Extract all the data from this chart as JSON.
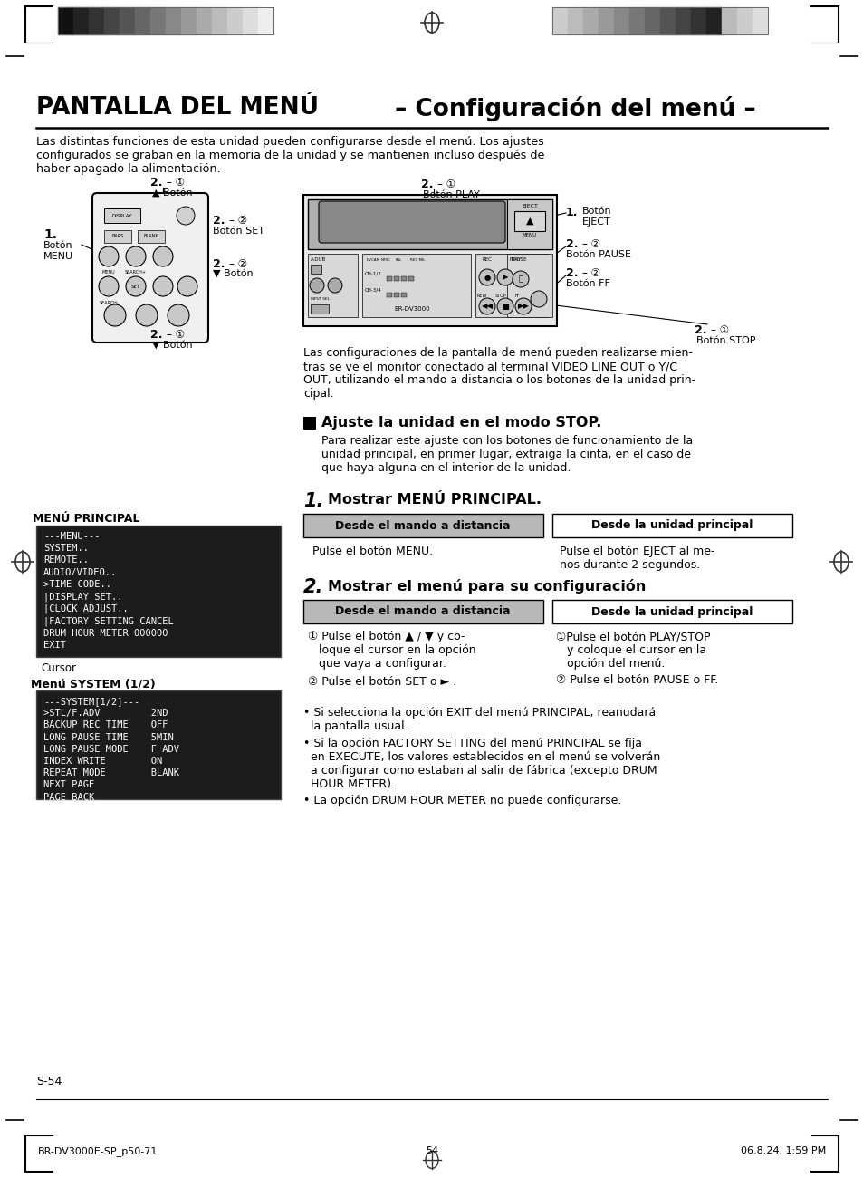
{
  "title_bold": "PANTALLA DEL MENÚ",
  "title_normal": " – Configuración del menú –",
  "intro_text": "Las distintas funciones de esta unidad pueden configurarse desde el menú. Los ajustes\nconfigurados se graban en la memoria de la unidad y se mantienen incluso después de\nhaber apagado la alimentación.",
  "mid_text": "Las configuraciones de la pantalla de menú pueden realizarse mien-\ntras se ve el monitor conectado al terminal VIDEO LINE OUT o Y/C\nOUT, utilizando el mando a distancia o los botones de la unidad prin-\ncipal.",
  "section_header": "Ajuste la unidad en el modo STOP.",
  "section_body": "Para realizar este ajuste con los botones de funcionamiento de la\nunidad principal, en primer lugar, extraiga la cinta, en el caso de\nque haya alguna en el interior de la unidad.",
  "step1_label": "1.",
  "step1_header": "Mostrar MENÚ PRINCIPAL.",
  "step2_label": "2.",
  "step2_header": "Mostrar el menú para su configuración",
  "remote_label": "Desde el mando a distancia",
  "main_unit_label": "Desde la unidad principal",
  "step1_remote": "Pulse el botón MENU.",
  "step1_main": "Pulse el botón EJECT al me-\nnos durante 2 segundos.",
  "step2_remote_1": "① Pulse el botón ▲ / ▼ y co-\n   loque el cursor en la opción\n   que vaya a configurar.",
  "step2_remote_2": "② Pulse el botón SET o ► .",
  "step2_main_1": "①Pulse el botón PLAY/STOP\n   y coloque el cursor en la\n   opción del menú.",
  "step2_main_2": "② Pulse el botón PAUSE o FF.",
  "bullet1": "• Si selecciona la opción EXIT del menú PRINCIPAL, reanudará\n  la pantalla usual.",
  "bullet2": "• Si la opción FACTORY SETTING del menú PRINCIPAL se fija\n  en EXECUTE, los valores establecidos en el menú se volverán\n  a configurar como estaban al salir de fábrica (excepto DRUM\n  HOUR METER).",
  "bullet3": "• La opción DRUM HOUR METER no puede configurarse.",
  "menu_principal_label": "MENÚ PRINCIPAL",
  "menu_principal_content": "---MENU---\nSYSTEM..\nREMOTE..\nAUDIO/VIDEO..\n>TIME CODE..\n|DISPLAY SET..\n|CLOCK ADJUST..\n|FACTORY SETTING CANCEL\nDRUM HOUR METER 000000\nEXIT",
  "cursor_label": "Cursor",
  "menu_system_label": "Menú SYSTEM (1/2)",
  "menu_system_content": "---SYSTEM[1/2]---\n>STL/F.ADV         2ND\nBACKUP REC TIME    OFF\nLONG PAUSE TIME    5MIN\nLONG PAUSE MODE    F ADV\nINDEX WRITE        ON\nREPEAT MODE        BLANK\nNEXT PAGE\nPAGE BACK",
  "page_label": "S-54",
  "footer_left": "BR-DV3000E-SP_p50-71",
  "footer_center": "54",
  "footer_right": "06.8.24, 1:59 PM",
  "bg_color": "#ffffff",
  "header_bar_colors_left": [
    "#111111",
    "#222222",
    "#333333",
    "#444444",
    "#555555",
    "#666666",
    "#777777",
    "#888888",
    "#999999",
    "#aaaaaa",
    "#bbbbbb",
    "#cccccc",
    "#dddddd",
    "#eeeeee"
  ],
  "header_bar_colors_right": [
    "#cccccc",
    "#bbbbbb",
    "#aaaaaa",
    "#999999",
    "#888888",
    "#777777",
    "#666666",
    "#555555",
    "#444444",
    "#333333",
    "#222222",
    "#bbbbbb",
    "#cccccc",
    "#dddddd"
  ]
}
